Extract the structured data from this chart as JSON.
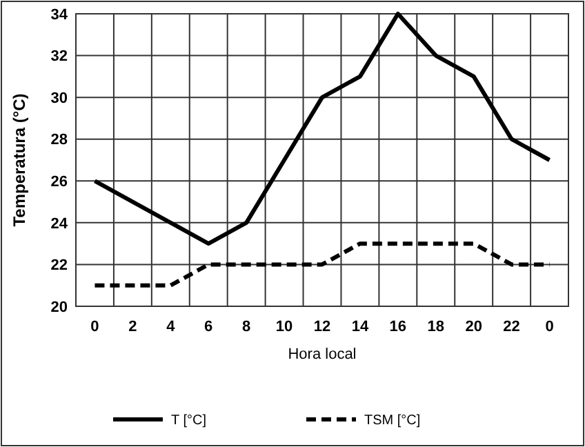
{
  "chart_data": {
    "type": "line",
    "xlabel": "Hora local",
    "ylabel": "Temperatura (°C)",
    "categories": [
      "0",
      "2",
      "4",
      "6",
      "8",
      "10",
      "12",
      "14",
      "16",
      "18",
      "20",
      "22",
      "0"
    ],
    "series": [
      {
        "name": "T [°C]",
        "color": "#000000",
        "line_style": "solid",
        "values": [
          26,
          25,
          24,
          23,
          24,
          27,
          30,
          31,
          34,
          32,
          31,
          28,
          27
        ]
      },
      {
        "name": "TSM [°C]",
        "color": "#000000",
        "line_style": "dashed",
        "values": [
          21,
          21,
          21,
          22,
          22,
          22,
          22,
          23,
          23,
          23,
          23,
          22,
          22
        ]
      }
    ],
    "ylim": [
      20,
      34
    ],
    "yticks": [
      20,
      22,
      24,
      26,
      28,
      30,
      32,
      34
    ],
    "grid": true,
    "legend": "bottom",
    "marker": "none"
  }
}
